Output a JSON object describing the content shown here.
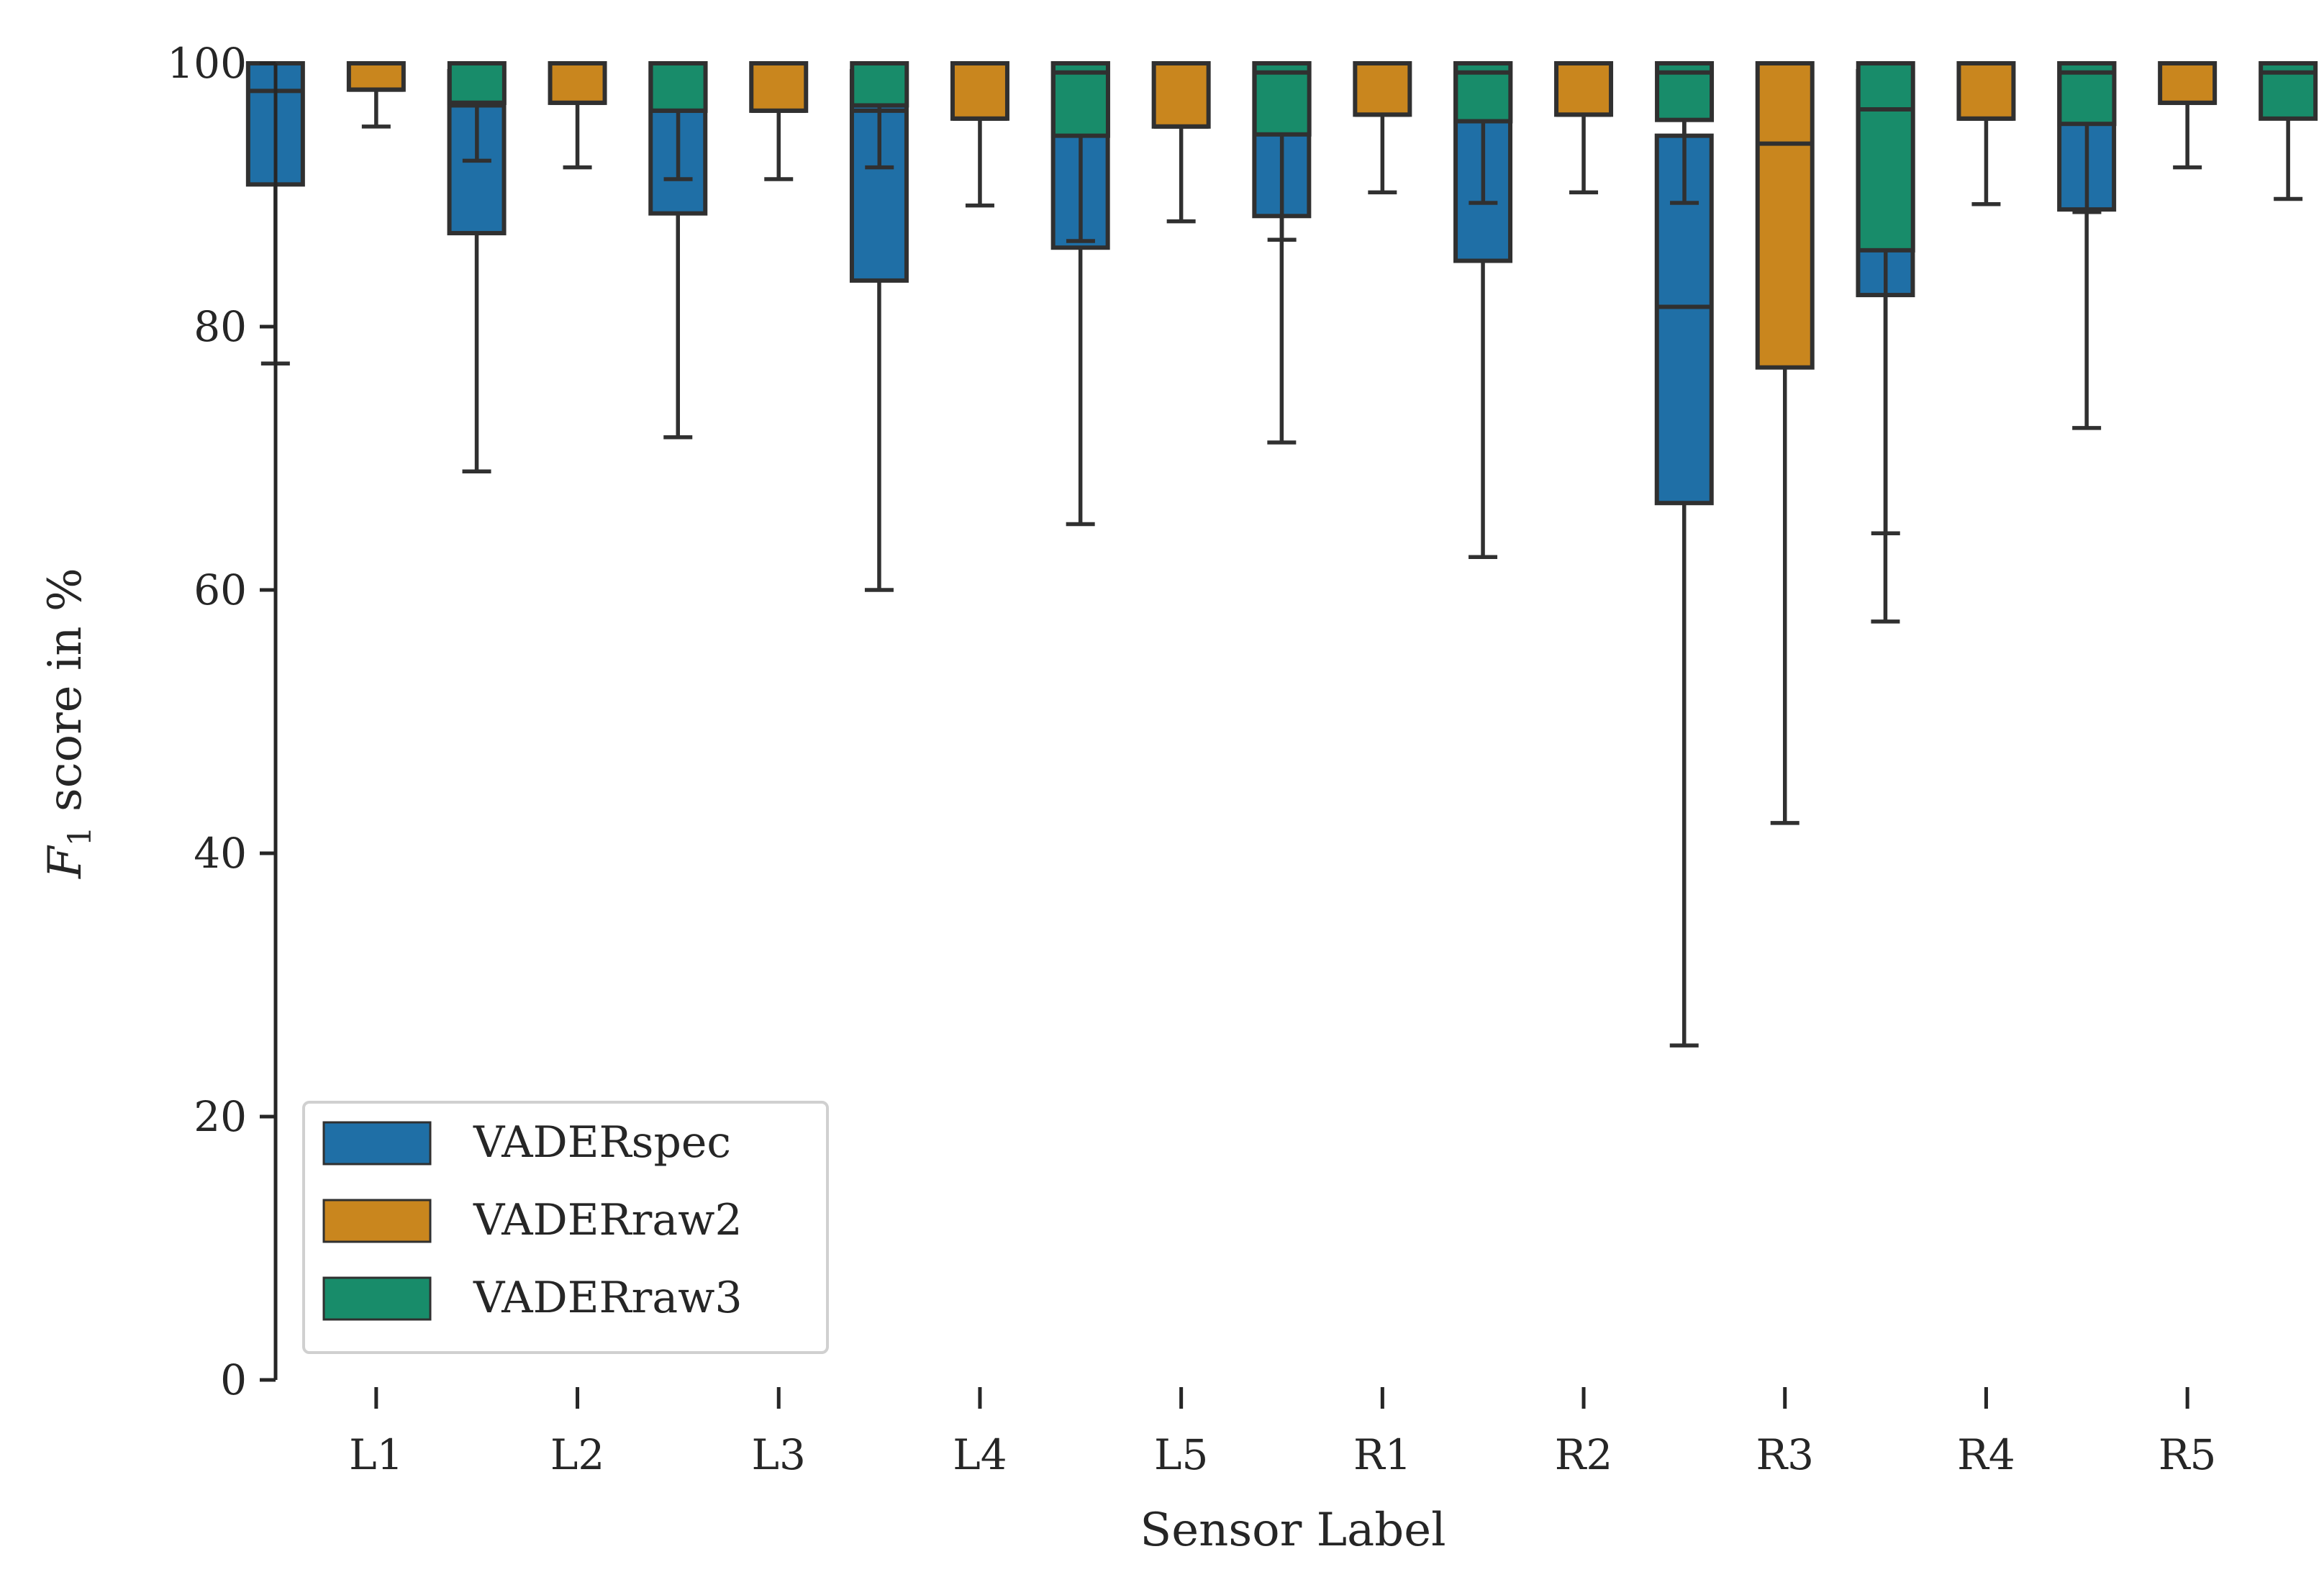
{
  "chart_data": {
    "type": "boxplot",
    "title": "",
    "xlabel": "Sensor Label",
    "ylabel_main": "F",
    "ylabel_sub": "1",
    "ylabel_rest": " score in %",
    "ylim": [
      0,
      100
    ],
    "yticks": [
      0,
      20,
      40,
      60,
      80,
      100
    ],
    "categories": [
      "L1",
      "L2",
      "L3",
      "L4",
      "L5",
      "R1",
      "R2",
      "R3",
      "R4",
      "R5"
    ],
    "legend_position": "lower-left",
    "series": [
      {
        "name": "VADERspec",
        "color": "#1f6fa6",
        "boxes": [
          {
            "whislo": 77.2,
            "q1": 90.8,
            "med": 97.9,
            "q3": 100,
            "whishi": 100
          },
          {
            "whislo": 69.0,
            "q1": 87.1,
            "med": 96.8,
            "q3": 99.4,
            "whishi": 100
          },
          {
            "whislo": 71.6,
            "q1": 88.6,
            "med": 97.0,
            "q3": 100,
            "whishi": 100
          },
          {
            "whislo": 60.0,
            "q1": 83.5,
            "med": 96.4,
            "q3": 99.4,
            "whishi": 100
          },
          {
            "whislo": 65.0,
            "q1": 86.0,
            "med": 96.9,
            "q3": 100,
            "whishi": 100
          },
          {
            "whislo": 71.2,
            "q1": 88.4,
            "med": 97.5,
            "q3": 100,
            "whishi": 100
          },
          {
            "whislo": 62.5,
            "q1": 85.0,
            "med": 97.5,
            "q3": 100,
            "whishi": 100
          },
          {
            "whislo": 25.4,
            "q1": 66.6,
            "med": 81.5,
            "q3": 94.5,
            "whishi": 100
          },
          {
            "whislo": 57.6,
            "q1": 82.4,
            "med": 96.9,
            "q3": 99.4,
            "whishi": 100
          },
          {
            "whislo": 72.3,
            "q1": 88.9,
            "med": 97.7,
            "q3": 100,
            "whishi": 100
          }
        ]
      },
      {
        "name": "VADERraw2",
        "color": "#c9861e",
        "boxes": [
          {
            "whislo": 95.2,
            "q1": 98.0,
            "med": 98.0,
            "q3": 100,
            "whishi": 100
          },
          {
            "whislo": 92.1,
            "q1": 97.0,
            "med": 97.0,
            "q3": 100,
            "whishi": 100
          },
          {
            "whislo": 91.2,
            "q1": 96.4,
            "med": 96.4,
            "q3": 100,
            "whishi": 100
          },
          {
            "whislo": 89.2,
            "q1": 95.8,
            "med": 95.8,
            "q3": 100,
            "whishi": 100
          },
          {
            "whislo": 88.0,
            "q1": 95.2,
            "med": 95.2,
            "q3": 100,
            "whishi": 100
          },
          {
            "whislo": 90.2,
            "q1": 96.1,
            "med": 96.1,
            "q3": 100,
            "whishi": 100
          },
          {
            "whislo": 90.2,
            "q1": 96.1,
            "med": 96.1,
            "q3": 100,
            "whishi": 100
          },
          {
            "whislo": 42.3,
            "q1": 76.9,
            "med": 93.9,
            "q3": 100,
            "whishi": 100
          },
          {
            "whislo": 89.3,
            "q1": 95.8,
            "med": 95.8,
            "q3": 100,
            "whishi": 100
          },
          {
            "whislo": 92.1,
            "q1": 97.0,
            "med": 97.0,
            "q3": 100,
            "whishi": 100
          }
        ]
      },
      {
        "name": "VADERraw3",
        "color": "#188c6a",
        "boxes": [
          {
            "whislo": 92.6,
            "q1": 97.0,
            "med": 97.0,
            "q3": 100,
            "whishi": 100
          },
          {
            "whislo": 91.2,
            "q1": 96.4,
            "med": 96.4,
            "q3": 100,
            "whishi": 100
          },
          {
            "whislo": 92.1,
            "q1": 96.8,
            "med": 96.8,
            "q3": 100,
            "whishi": 100
          },
          {
            "whislo": 86.5,
            "q1": 94.5,
            "med": 99.3,
            "q3": 100,
            "whishi": 100
          },
          {
            "whislo": 86.6,
            "q1": 94.6,
            "med": 99.3,
            "q3": 100,
            "whishi": 100
          },
          {
            "whislo": 89.4,
            "q1": 95.6,
            "med": 99.3,
            "q3": 100,
            "whishi": 100
          },
          {
            "whislo": 89.4,
            "q1": 95.7,
            "med": 99.3,
            "q3": 100,
            "whishi": 100
          },
          {
            "whislo": 64.3,
            "q1": 85.8,
            "med": 96.5,
            "q3": 100,
            "whishi": 100
          },
          {
            "whislo": 88.7,
            "q1": 95.4,
            "med": 99.3,
            "q3": 100,
            "whishi": 100
          },
          {
            "whislo": 89.7,
            "q1": 95.8,
            "med": 99.3,
            "q3": 100,
            "whishi": 100
          }
        ]
      }
    ]
  }
}
